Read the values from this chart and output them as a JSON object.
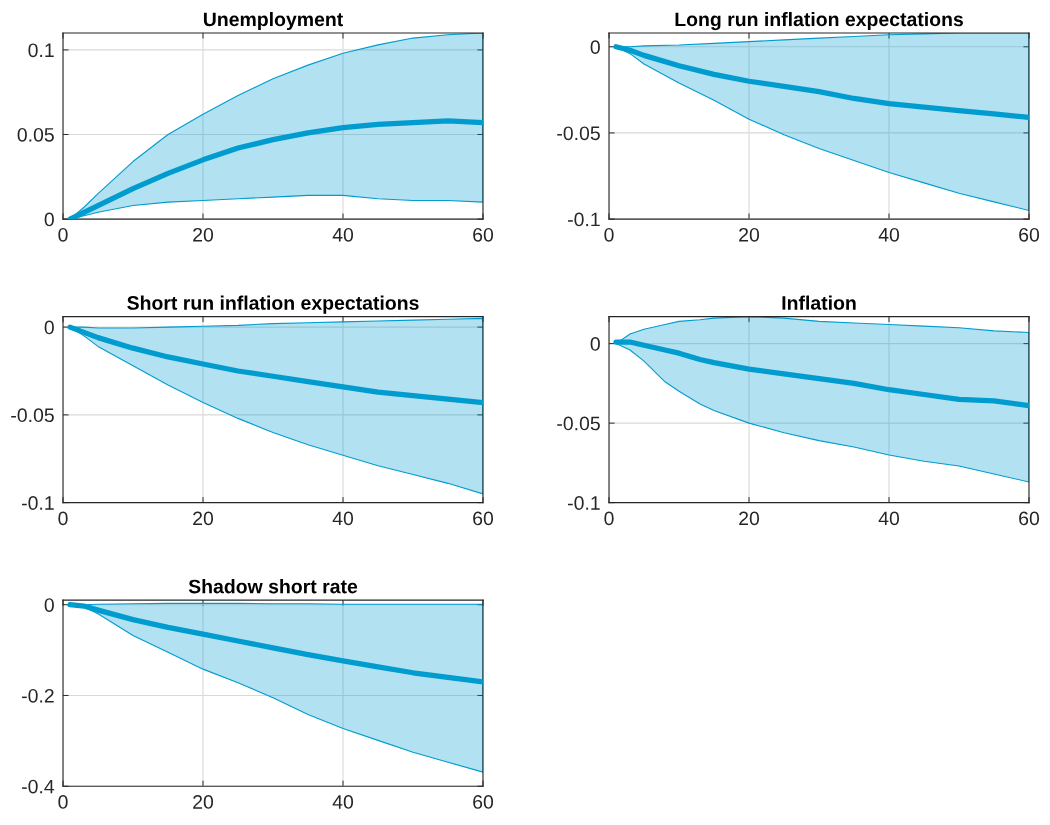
{
  "chart_data": [
    {
      "type": "line",
      "title": "Unemployment",
      "x": [
        1,
        3,
        5,
        10,
        15,
        20,
        25,
        30,
        35,
        40,
        45,
        50,
        55,
        60
      ],
      "series": [
        {
          "color": "#009ccf",
          "values": [
            0,
            0.004,
            0.008,
            0.018,
            0.027,
            0.035,
            0.042,
            0.047,
            0.051,
            0.054,
            0.056,
            0.057,
            0.058,
            0.057
          ],
          "lower": [
            0,
            0.002,
            0.004,
            0.008,
            0.01,
            0.011,
            0.012,
            0.013,
            0.014,
            0.014,
            0.012,
            0.011,
            0.011,
            0.01
          ],
          "upper": [
            0,
            0.007,
            0.015,
            0.034,
            0.05,
            0.062,
            0.073,
            0.083,
            0.091,
            0.098,
            0.103,
            0.107,
            0.109,
            0.11
          ]
        }
      ],
      "xlim": [
        0,
        60
      ],
      "xticks": [
        0,
        20,
        40,
        60
      ],
      "ylim": [
        0,
        0.11
      ],
      "yticks": [
        0,
        0.05,
        0.1
      ],
      "grid": true
    },
    {
      "type": "line",
      "title": "Long run inflation expectations",
      "x": [
        1,
        3,
        5,
        10,
        15,
        20,
        25,
        30,
        35,
        40,
        45,
        50,
        55,
        60
      ],
      "series": [
        {
          "color": "#009ccf",
          "values": [
            0,
            -0.002,
            -0.005,
            -0.011,
            -0.016,
            -0.02,
            -0.023,
            -0.026,
            -0.03,
            -0.033,
            -0.035,
            -0.037,
            -0.039,
            -0.041
          ],
          "lower": [
            0,
            -0.004,
            -0.01,
            -0.021,
            -0.031,
            -0.042,
            -0.051,
            -0.059,
            -0.066,
            -0.073,
            -0.079,
            -0.085,
            -0.09,
            -0.095
          ],
          "upper": [
            0,
            0,
            0.0005,
            0.001,
            0.002,
            0.003,
            0.004,
            0.005,
            0.006,
            0.007,
            0.0075,
            0.008,
            0.008,
            0.008
          ]
        }
      ],
      "xlim": [
        0,
        60
      ],
      "xticks": [
        0,
        20,
        40,
        60
      ],
      "ylim": [
        -0.1,
        0.008
      ],
      "yticks": [
        -0.1,
        -0.05,
        0
      ],
      "grid": true
    },
    {
      "type": "line",
      "title": "Short run inflation expectations",
      "x": [
        1,
        3,
        5,
        10,
        15,
        20,
        25,
        30,
        35,
        40,
        45,
        50,
        55,
        60
      ],
      "series": [
        {
          "color": "#009ccf",
          "values": [
            0,
            -0.003,
            -0.006,
            -0.012,
            -0.017,
            -0.021,
            -0.025,
            -0.028,
            -0.031,
            -0.034,
            -0.037,
            -0.039,
            -0.041,
            -0.043
          ],
          "lower": [
            0,
            -0.005,
            -0.011,
            -0.022,
            -0.033,
            -0.043,
            -0.052,
            -0.06,
            -0.067,
            -0.073,
            -0.079,
            -0.084,
            -0.089,
            -0.095
          ],
          "upper": [
            0,
            0,
            -0.0005,
            -0.0005,
            0,
            0.0005,
            0.001,
            0.002,
            0.0025,
            0.003,
            0.0035,
            0.004,
            0.0045,
            0.005
          ]
        }
      ],
      "xlim": [
        0,
        60
      ],
      "xticks": [
        0,
        20,
        40,
        60
      ],
      "ylim": [
        -0.1,
        0.006
      ],
      "yticks": [
        -0.1,
        -0.05,
        0
      ],
      "grid": true
    },
    {
      "type": "line",
      "title": "Inflation",
      "x": [
        1,
        3,
        5,
        8,
        10,
        13,
        15,
        20,
        25,
        30,
        35,
        40,
        45,
        50,
        55,
        60
      ],
      "series": [
        {
          "color": "#009ccf",
          "values": [
            0.001,
            0.001,
            -0.001,
            -0.004,
            -0.006,
            -0.01,
            -0.012,
            -0.016,
            -0.019,
            -0.022,
            -0.025,
            -0.029,
            -0.032,
            -0.035,
            -0.036,
            -0.039
          ],
          "lower": [
            0,
            -0.004,
            -0.011,
            -0.024,
            -0.03,
            -0.038,
            -0.042,
            -0.05,
            -0.056,
            -0.061,
            -0.065,
            -0.07,
            -0.074,
            -0.077,
            -0.082,
            -0.087
          ],
          "upper": [
            0,
            0.006,
            0.009,
            0.012,
            0.014,
            0.015,
            0.016,
            0.017,
            0.016,
            0.014,
            0.013,
            0.012,
            0.011,
            0.01,
            0.008,
            0.007
          ]
        }
      ],
      "xlim": [
        0,
        60
      ],
      "xticks": [
        0,
        20,
        40,
        60
      ],
      "ylim": [
        -0.1,
        0.017
      ],
      "yticks": [
        -0.1,
        -0.05,
        0
      ],
      "grid": true
    },
    {
      "type": "line",
      "title": "Shadow short rate",
      "x": [
        1,
        3,
        5,
        10,
        15,
        20,
        25,
        30,
        35,
        40,
        45,
        50,
        55,
        60
      ],
      "series": [
        {
          "color": "#009ccf",
          "values": [
            0,
            -0.003,
            -0.012,
            -0.033,
            -0.05,
            -0.065,
            -0.08,
            -0.095,
            -0.11,
            -0.124,
            -0.137,
            -0.15,
            -0.16,
            -0.17
          ],
          "lower": [
            0,
            -0.005,
            -0.02,
            -0.068,
            -0.105,
            -0.142,
            -0.172,
            -0.205,
            -0.242,
            -0.273,
            -0.299,
            -0.325,
            -0.347,
            -0.369
          ],
          "upper": [
            0,
            0,
            0.001,
            0.002,
            0.003,
            0.003,
            0.003,
            0.002,
            0.002,
            0.001,
            0.001,
            0.001,
            0.001,
            0.001
          ]
        }
      ],
      "xlim": [
        0,
        60
      ],
      "xticks": [
        0,
        20,
        40,
        60
      ],
      "ylim": [
        -0.4,
        0.01
      ],
      "yticks": [
        -0.4,
        -0.2,
        0
      ],
      "grid": true
    }
  ]
}
